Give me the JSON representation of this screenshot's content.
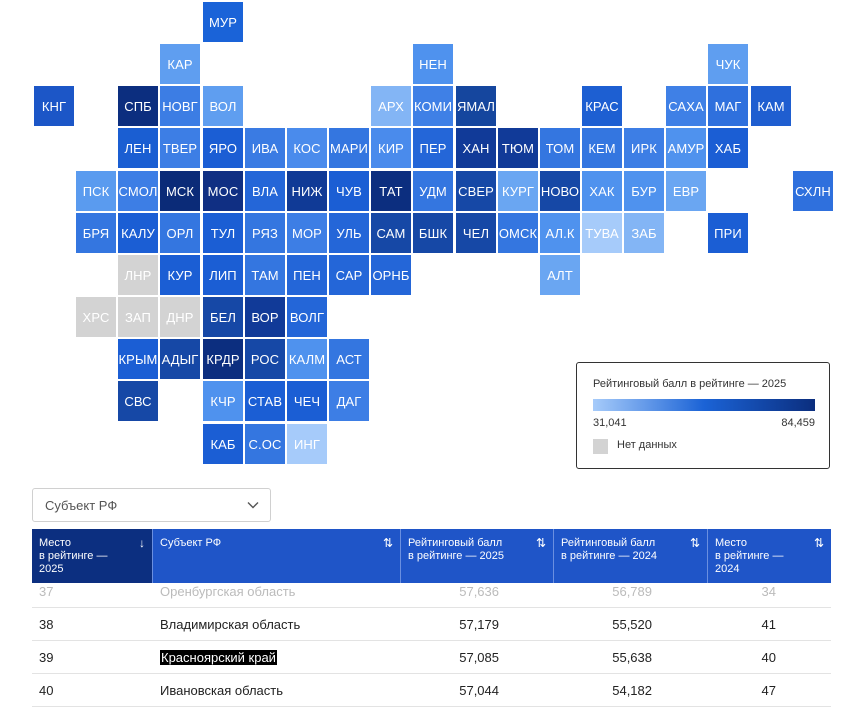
{
  "map": {
    "tiles": [
      {
        "code": "МУР",
        "col": 5,
        "row": 0,
        "color": "#1a63d8"
      },
      {
        "code": "КАР",
        "col": 4,
        "row": 1,
        "color": "#5f9ef0"
      },
      {
        "code": "НЕН",
        "col": 10,
        "row": 1,
        "color": "#4f92ee"
      },
      {
        "code": "ЧУК",
        "col": 17,
        "row": 1,
        "color": "#5f9ef0"
      },
      {
        "code": "КНГ",
        "col": 1,
        "row": 2,
        "color": "#1c56c7"
      },
      {
        "code": "СПБ",
        "col": 3,
        "row": 2,
        "color": "#0c2e7f"
      },
      {
        "code": "НОВГ",
        "col": 4,
        "row": 2,
        "color": "#3c7de4"
      },
      {
        "code": "ВОЛ",
        "col": 5,
        "row": 2,
        "color": "#5f9ef0"
      },
      {
        "code": "АРХ",
        "col": 9,
        "row": 2,
        "color": "#83b5f5"
      },
      {
        "code": "КОМИ",
        "col": 10,
        "row": 2,
        "color": "#3f80e6"
      },
      {
        "code": "ЯМАЛ",
        "col": 11,
        "row": 2,
        "color": "#15469e"
      },
      {
        "code": "КРАС",
        "col": 14,
        "row": 2,
        "color": "#1d5fd2"
      },
      {
        "code": "САХА",
        "col": 16,
        "row": 2,
        "color": "#3f80e6"
      },
      {
        "code": "МАГ",
        "col": 17,
        "row": 2,
        "color": "#2f70dd"
      },
      {
        "code": "КАМ",
        "col": 18,
        "row": 2,
        "color": "#1f5ed0"
      },
      {
        "code": "ЛЕН",
        "col": 3,
        "row": 3,
        "color": "#1a5ed2"
      },
      {
        "code": "ТВЕР",
        "col": 4,
        "row": 3,
        "color": "#3d7ee5"
      },
      {
        "code": "ЯРО",
        "col": 5,
        "row": 3,
        "color": "#1b5ed4"
      },
      {
        "code": "ИВА",
        "col": 6,
        "row": 3,
        "color": "#3a7be3"
      },
      {
        "code": "КОС",
        "col": 7,
        "row": 3,
        "color": "#4a8bec"
      },
      {
        "code": "МАРИ",
        "col": 8,
        "row": 3,
        "color": "#3476e0"
      },
      {
        "code": "КИР",
        "col": 9,
        "row": 3,
        "color": "#4a8bec"
      },
      {
        "code": "ПЕР",
        "col": 10,
        "row": 3,
        "color": "#2466d8"
      },
      {
        "code": "ХАН",
        "col": 11,
        "row": 3,
        "color": "#113a98"
      },
      {
        "code": "ТЮМ",
        "col": 12,
        "row": 3,
        "color": "#113a98"
      },
      {
        "code": "ТОМ",
        "col": 13,
        "row": 3,
        "color": "#3476e0"
      },
      {
        "code": "КЕМ",
        "col": 14,
        "row": 3,
        "color": "#3476e0"
      },
      {
        "code": "ИРК",
        "col": 15,
        "row": 3,
        "color": "#3d7ee5"
      },
      {
        "code": "АМУР",
        "col": 16,
        "row": 3,
        "color": "#4f92ee"
      },
      {
        "code": "ХАБ",
        "col": 17,
        "row": 3,
        "color": "#1b5ed4"
      },
      {
        "code": "ПСК",
        "col": 2,
        "row": 4,
        "color": "#5a9bef"
      },
      {
        "code": "СМОЛ",
        "col": 3,
        "row": 4,
        "color": "#3d7ee5"
      },
      {
        "code": "МСК",
        "col": 4,
        "row": 4,
        "color": "#0b2b78"
      },
      {
        "code": "МОС",
        "col": 5,
        "row": 4,
        "color": "#102f83"
      },
      {
        "code": "ВЛА",
        "col": 6,
        "row": 4,
        "color": "#2466d8"
      },
      {
        "code": "НИЖ",
        "col": 7,
        "row": 4,
        "color": "#103a96"
      },
      {
        "code": "ЧУВ",
        "col": 8,
        "row": 4,
        "color": "#1b5ed4"
      },
      {
        "code": "ТАТ",
        "col": 9,
        "row": 4,
        "color": "#0c2e7f"
      },
      {
        "code": "УДМ",
        "col": 10,
        "row": 4,
        "color": "#3476e0"
      },
      {
        "code": "СВЕР",
        "col": 11,
        "row": 4,
        "color": "#1648a6"
      },
      {
        "code": "КУРГ",
        "col": 12,
        "row": 4,
        "color": "#6aa6f2"
      },
      {
        "code": "НОВО",
        "col": 13,
        "row": 4,
        "color": "#1648a6"
      },
      {
        "code": "ХАК",
        "col": 14,
        "row": 4,
        "color": "#4f92ee"
      },
      {
        "code": "БУР",
        "col": 15,
        "row": 4,
        "color": "#4f92ee"
      },
      {
        "code": "ЕВР",
        "col": 16,
        "row": 4,
        "color": "#6aa6f2"
      },
      {
        "code": "СХЛН",
        "col": 19,
        "row": 4,
        "color": "#2f70dd"
      },
      {
        "code": "БРЯ",
        "col": 2,
        "row": 5,
        "color": "#3476e0"
      },
      {
        "code": "КАЛУ",
        "col": 3,
        "row": 5,
        "color": "#1b5ed4"
      },
      {
        "code": "ОРЛ",
        "col": 4,
        "row": 5,
        "color": "#3476e0"
      },
      {
        "code": "ТУЛ",
        "col": 5,
        "row": 5,
        "color": "#1b5ed4"
      },
      {
        "code": "РЯЗ",
        "col": 6,
        "row": 5,
        "color": "#3476e0"
      },
      {
        "code": "МОР",
        "col": 7,
        "row": 5,
        "color": "#3d7ee5"
      },
      {
        "code": "УЛЬ",
        "col": 8,
        "row": 5,
        "color": "#2466d8"
      },
      {
        "code": "САМ",
        "col": 9,
        "row": 5,
        "color": "#1648a6"
      },
      {
        "code": "БШК",
        "col": 10,
        "row": 5,
        "color": "#1648a6"
      },
      {
        "code": "ЧЕЛ",
        "col": 11,
        "row": 5,
        "color": "#1648a6"
      },
      {
        "code": "ОМСК",
        "col": 12,
        "row": 5,
        "color": "#3476e0"
      },
      {
        "code": "АЛ.К",
        "col": 13,
        "row": 5,
        "color": "#4f92ee"
      },
      {
        "code": "ТУВА",
        "col": 14,
        "row": 5,
        "color": "#a6cbfa"
      },
      {
        "code": "ЗАБ",
        "col": 15,
        "row": 5,
        "color": "#83b5f5"
      },
      {
        "code": "ПРИ",
        "col": 17,
        "row": 5,
        "color": "#1b5ed4"
      },
      {
        "code": "ЛНР",
        "col": 3,
        "row": 6,
        "color": "#d3d3d3"
      },
      {
        "code": "КУР",
        "col": 4,
        "row": 6,
        "color": "#1b5ed4"
      },
      {
        "code": "ЛИП",
        "col": 5,
        "row": 6,
        "color": "#1b5ed4"
      },
      {
        "code": "ТАМ",
        "col": 6,
        "row": 6,
        "color": "#3476e0"
      },
      {
        "code": "ПЕН",
        "col": 7,
        "row": 6,
        "color": "#2466d8"
      },
      {
        "code": "САР",
        "col": 8,
        "row": 6,
        "color": "#2466d8"
      },
      {
        "code": "ОРНБ",
        "col": 9,
        "row": 6,
        "color": "#2466d8"
      },
      {
        "code": "АЛТ",
        "col": 13,
        "row": 6,
        "color": "#6aa6f2"
      },
      {
        "code": "ХРС",
        "col": 2,
        "row": 7,
        "color": "#d3d3d3"
      },
      {
        "code": "ЗАП",
        "col": 3,
        "row": 7,
        "color": "#d3d3d3"
      },
      {
        "code": "ДНР",
        "col": 4,
        "row": 7,
        "color": "#d3d3d3"
      },
      {
        "code": "БЕЛ",
        "col": 5,
        "row": 7,
        "color": "#1648a6"
      },
      {
        "code": "ВОР",
        "col": 6,
        "row": 7,
        "color": "#113a98"
      },
      {
        "code": "ВОЛГ",
        "col": 7,
        "row": 7,
        "color": "#2466d8"
      },
      {
        "code": "КРЫМ",
        "col": 3,
        "row": 8,
        "color": "#1b5ed4"
      },
      {
        "code": "АДЫГ",
        "col": 4,
        "row": 8,
        "color": "#1648a6"
      },
      {
        "code": "КРДР",
        "col": 5,
        "row": 8,
        "color": "#0c2e7f"
      },
      {
        "code": "РОС",
        "col": 6,
        "row": 8,
        "color": "#1648a6"
      },
      {
        "code": "КАЛМ",
        "col": 7,
        "row": 8,
        "color": "#4f92ee"
      },
      {
        "code": "АСТ",
        "col": 8,
        "row": 8,
        "color": "#3476e0"
      },
      {
        "code": "СВС",
        "col": 3,
        "row": 9,
        "color": "#1648a6"
      },
      {
        "code": "КЧР",
        "col": 5,
        "row": 9,
        "color": "#4f92ee"
      },
      {
        "code": "СТАВ",
        "col": 6,
        "row": 9,
        "color": "#1b5ed4"
      },
      {
        "code": "ЧЕЧ",
        "col": 7,
        "row": 9,
        "color": "#1b5ed4"
      },
      {
        "code": "ДАГ",
        "col": 8,
        "row": 9,
        "color": "#3d7ee5"
      },
      {
        "code": "КАБ",
        "col": 5,
        "row": 10,
        "color": "#1b5ed4"
      },
      {
        "code": "С.ОС",
        "col": 6,
        "row": 10,
        "color": "#3476e0"
      },
      {
        "code": "ИНГ",
        "col": 7,
        "row": 10,
        "color": "#a6cbfa"
      }
    ]
  },
  "legend": {
    "title": "Рейтинговый балл в рейтинге — 2025",
    "min": "31,041",
    "max": "84,459",
    "no_data": "Нет данных",
    "no_data_color": "#d3d3d3"
  },
  "filter": {
    "label": "Субъект РФ"
  },
  "table": {
    "headers": [
      {
        "label": "Место\nв рейтинге —\n2025",
        "sort": "↓"
      },
      {
        "label": "Субъект РФ",
        "sort": "⇅"
      },
      {
        "label": "Рейтинговый балл\nв рейтинге — 2025",
        "sort": "⇅"
      },
      {
        "label": "Рейтинговый балл\nв рейтинге — 2024",
        "sort": "⇅"
      },
      {
        "label": "Место\nв рейтинге —\n2024",
        "sort": "⇅"
      }
    ],
    "rows": [
      {
        "rank": "37",
        "region": "Оренбургская область",
        "score2025": "57,636",
        "score2024": "56,789",
        "rank2024": "34"
      },
      {
        "rank": "38",
        "region": "Владимирская область",
        "score2025": "57,179",
        "score2024": "55,520",
        "rank2024": "41"
      },
      {
        "rank": "39",
        "region": "Красноярский край",
        "score2025": "57,085",
        "score2024": "55,638",
        "rank2024": "40"
      },
      {
        "rank": "40",
        "region": "Ивановская область",
        "score2025": "57,044",
        "score2024": "54,182",
        "rank2024": "47"
      }
    ]
  }
}
